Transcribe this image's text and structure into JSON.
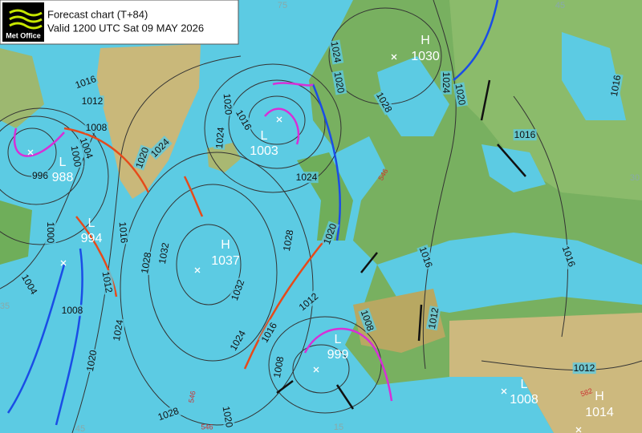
{
  "header": {
    "logo": "Met Office",
    "title": "Forecast chart (T+84)",
    "valid": "Valid 1200 UTC Sat 09 MAY 2026"
  },
  "centres": [
    {
      "type": "H",
      "pressure": 1030
    },
    {
      "type": "L",
      "pressure": 1003
    },
    {
      "type": "L",
      "pressure": 988
    },
    {
      "type": "L",
      "pressure": 994
    },
    {
      "type": "H",
      "pressure": 1037
    },
    {
      "type": "L",
      "pressure": 999
    },
    {
      "type": "L",
      "pressure": 1008
    },
    {
      "type": "H",
      "pressure": 1014
    }
  ],
  "isobar_labels": [
    1016,
    1012,
    1008,
    1004,
    1000,
    996,
    1020,
    1024,
    1024,
    1020,
    1016,
    1024,
    1020,
    1028,
    1024,
    1020,
    1016,
    1016,
    1024,
    1016,
    1000,
    1004,
    1008,
    1012,
    1028,
    1032,
    1032,
    1028,
    1020,
    1012,
    1016,
    1024,
    1024,
    1020,
    1008,
    1008,
    1012,
    1016,
    1016,
    1012,
    1028,
    1020
  ],
  "grid_labels": [
    75,
    45,
    30,
    35,
    15,
    45
  ],
  "thickness_labels": [
    546,
    546,
    582,
    546
  ]
}
